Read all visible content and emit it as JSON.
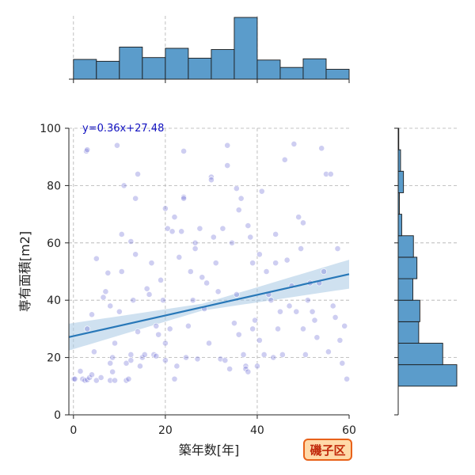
{
  "chart_data": {
    "type": "scatter",
    "xlabel": "築年数[年]",
    "ylabel": "専有面積[m2]",
    "xlim": [
      -1,
      60
    ],
    "ylim": [
      0,
      100
    ],
    "x_ticks": [
      0,
      20,
      40,
      60
    ],
    "y_ticks": [
      0,
      20,
      40,
      60,
      80,
      100
    ],
    "grid": true,
    "regression": {
      "label": "y=0.36x+27.48",
      "slope": 0.36,
      "intercept": 27.48
    },
    "badge": "磯子区",
    "marginal_x_hist": {
      "bin_edges": [
        0,
        5,
        10,
        15,
        20,
        25,
        30,
        35,
        40,
        45,
        50,
        55,
        60
      ],
      "counts": [
        32,
        29,
        52,
        35,
        50,
        34,
        48,
        100,
        31,
        19,
        33,
        16
      ]
    },
    "marginal_y_hist": {
      "bin_edges": [
        10,
        17.5,
        25,
        32.5,
        40,
        47.5,
        55,
        62.5,
        70,
        77.5,
        85,
        92.5,
        100
      ],
      "counts": [
        100,
        76,
        35,
        37,
        25,
        32,
        26,
        6,
        2,
        9,
        4,
        1
      ]
    },
    "points": [
      [
        0.1,
        12.5
      ],
      [
        0.3,
        12.5
      ],
      [
        2.8,
        92.0
      ],
      [
        3.0,
        92.5
      ],
      [
        1.5,
        15.2
      ],
      [
        2.0,
        12.5
      ],
      [
        2.5,
        12.0
      ],
      [
        3.0,
        12.2
      ],
      [
        3.5,
        13.0
      ],
      [
        4.0,
        14.0
      ],
      [
        5.0,
        12.0
      ],
      [
        6.0,
        13.0
      ],
      [
        4.5,
        22.0
      ],
      [
        3.0,
        30.0
      ],
      [
        4.0,
        35.0
      ],
      [
        5.0,
        54.5
      ],
      [
        6.5,
        41.0
      ],
      [
        7.0,
        43.0
      ],
      [
        7.5,
        49.5
      ],
      [
        8.0,
        38.0
      ],
      [
        8.0,
        12.0
      ],
      [
        9.0,
        12.0
      ],
      [
        8.5,
        15.0
      ],
      [
        8.0,
        18.0
      ],
      [
        8.5,
        20.0
      ],
      [
        9.0,
        25.0
      ],
      [
        9.5,
        94.0
      ],
      [
        10.0,
        36.0
      ],
      [
        10.5,
        50.0
      ],
      [
        10.5,
        63.0
      ],
      [
        11.0,
        80.0
      ],
      [
        11.5,
        18.0
      ],
      [
        11.5,
        12.0
      ],
      [
        12.0,
        12.5
      ],
      [
        12.5,
        19.0
      ],
      [
        12.5,
        21.0
      ],
      [
        12.5,
        60.5
      ],
      [
        13.0,
        40.0
      ],
      [
        13.5,
        56.0
      ],
      [
        13.5,
        75.5
      ],
      [
        14.0,
        84.0
      ],
      [
        14.0,
        29.0
      ],
      [
        14.5,
        17.0
      ],
      [
        15.0,
        20.0
      ],
      [
        15.5,
        21.0
      ],
      [
        16.0,
        44.0
      ],
      [
        16.5,
        42.0
      ],
      [
        17.0,
        53.0
      ],
      [
        17.5,
        21.0
      ],
      [
        18.0,
        31.0
      ],
      [
        18.5,
        28.0
      ],
      [
        19.0,
        47.0
      ],
      [
        19.5,
        40.0
      ],
      [
        20.0,
        72.0
      ],
      [
        20.0,
        25.0
      ],
      [
        20.5,
        65.0
      ],
      [
        21.0,
        30.0
      ],
      [
        21.5,
        64.0
      ],
      [
        22.0,
        69.0
      ],
      [
        22.5,
        17.0
      ],
      [
        23.0,
        55.0
      ],
      [
        23.5,
        64.0
      ],
      [
        24.0,
        92.0
      ],
      [
        24.0,
        76.0
      ],
      [
        24.0,
        75.5
      ],
      [
        24.5,
        20.0
      ],
      [
        25.0,
        31.0
      ],
      [
        25.5,
        50.0
      ],
      [
        26.0,
        40.0
      ],
      [
        26.5,
        60.0
      ],
      [
        26.5,
        58.0
      ],
      [
        27.0,
        19.5
      ],
      [
        27.5,
        65.0
      ],
      [
        28.0,
        48.0
      ],
      [
        28.5,
        37.0
      ],
      [
        29.0,
        46.0
      ],
      [
        29.5,
        25.0
      ],
      [
        30.0,
        83.0
      ],
      [
        30.0,
        82.0
      ],
      [
        30.5,
        62.0
      ],
      [
        31.0,
        53.0
      ],
      [
        31.5,
        43.0
      ],
      [
        32.0,
        19.5
      ],
      [
        32.5,
        65.0
      ],
      [
        33.0,
        19.0
      ],
      [
        33.5,
        94.0
      ],
      [
        33.5,
        87.0
      ],
      [
        34.0,
        16.0
      ],
      [
        34.5,
        60.0
      ],
      [
        35.0,
        32.0
      ],
      [
        35.5,
        42.0
      ],
      [
        35.5,
        79.0
      ],
      [
        36.0,
        71.5
      ],
      [
        36.5,
        75.5
      ],
      [
        37.0,
        21.0
      ],
      [
        37.5,
        17.0
      ],
      [
        37.5,
        16.0
      ],
      [
        38.0,
        15.0
      ],
      [
        38.0,
        66.0
      ],
      [
        38.5,
        62.0
      ],
      [
        39.0,
        53.0
      ],
      [
        39.0,
        30.0
      ],
      [
        39.5,
        33.0
      ],
      [
        40.0,
        17.0
      ],
      [
        40.5,
        56.0
      ],
      [
        40.5,
        26.0
      ],
      [
        41.0,
        78.0
      ],
      [
        41.5,
        21.0
      ],
      [
        42.0,
        50.0
      ],
      [
        42.5,
        42.0
      ],
      [
        43.0,
        40.0
      ],
      [
        43.5,
        20.0
      ],
      [
        44.0,
        53.0
      ],
      [
        44.0,
        63.0
      ],
      [
        44.5,
        30.0
      ],
      [
        45.0,
        36.0
      ],
      [
        45.5,
        21.0
      ],
      [
        46.0,
        89.0
      ],
      [
        46.5,
        54.0
      ],
      [
        47.0,
        38.0
      ],
      [
        47.5,
        45.0
      ],
      [
        48.0,
        94.5
      ],
      [
        48.5,
        36.0
      ],
      [
        49.0,
        69.0
      ],
      [
        49.5,
        58.0
      ],
      [
        50.0,
        67.0
      ],
      [
        50.0,
        30.0
      ],
      [
        50.5,
        21.0
      ],
      [
        51.0,
        40.0
      ],
      [
        51.5,
        46.0
      ],
      [
        52.0,
        36.0
      ],
      [
        52.5,
        33.0
      ],
      [
        53.0,
        27.0
      ],
      [
        53.5,
        46.0
      ],
      [
        54.0,
        93.0
      ],
      [
        54.5,
        50.0
      ],
      [
        55.0,
        84.0
      ],
      [
        55.5,
        22.0
      ],
      [
        56.0,
        84.0
      ],
      [
        56.5,
        38.0
      ],
      [
        57.0,
        34.0
      ],
      [
        57.5,
        58.0
      ],
      [
        58.0,
        26.0
      ],
      [
        58.5,
        18.0
      ],
      [
        59.0,
        31.0
      ],
      [
        59.5,
        12.5
      ],
      [
        36.0,
        28.0
      ],
      [
        22.0,
        12.5
      ],
      [
        20.0,
        19.0
      ],
      [
        18.0,
        20.5
      ]
    ]
  }
}
